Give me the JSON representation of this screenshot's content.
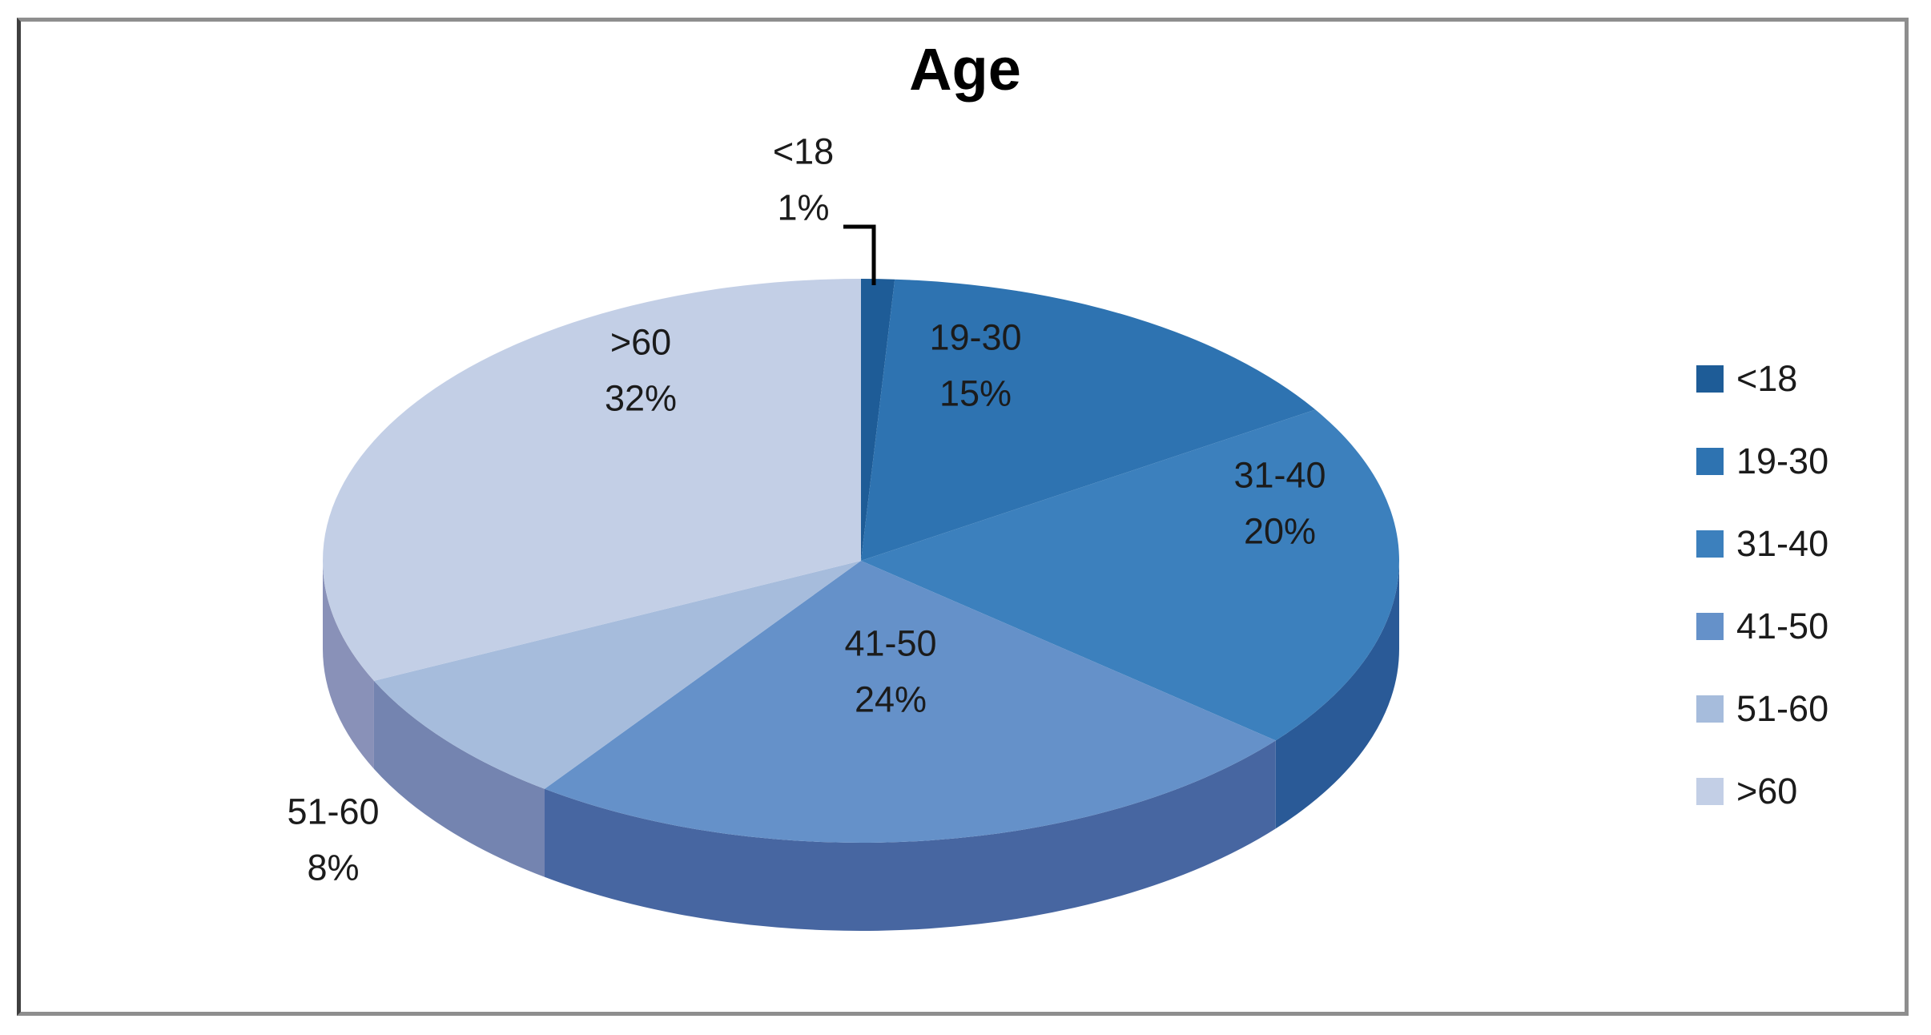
{
  "chart_data": {
    "type": "pie",
    "title": "Age",
    "categories": [
      "<18",
      "19-30",
      "31-40",
      "41-50",
      "51-60",
      ">60"
    ],
    "values": [
      1,
      15,
      20,
      24,
      8,
      32
    ],
    "value_labels": [
      "1%",
      "15%",
      "20%",
      "24%",
      "8%",
      "32%"
    ],
    "colors": [
      "#1E5C97",
      "#2E73B1",
      "#3C80BD",
      "#6591C9",
      "#A6BCDC",
      "#C3CFE6"
    ],
    "unit": "%",
    "effect": "3d",
    "start_angle": "12 o'clock, clockwise",
    "legend_position": "right",
    "label_color": "#1b1b1b",
    "leader_line_color": "#000000"
  }
}
